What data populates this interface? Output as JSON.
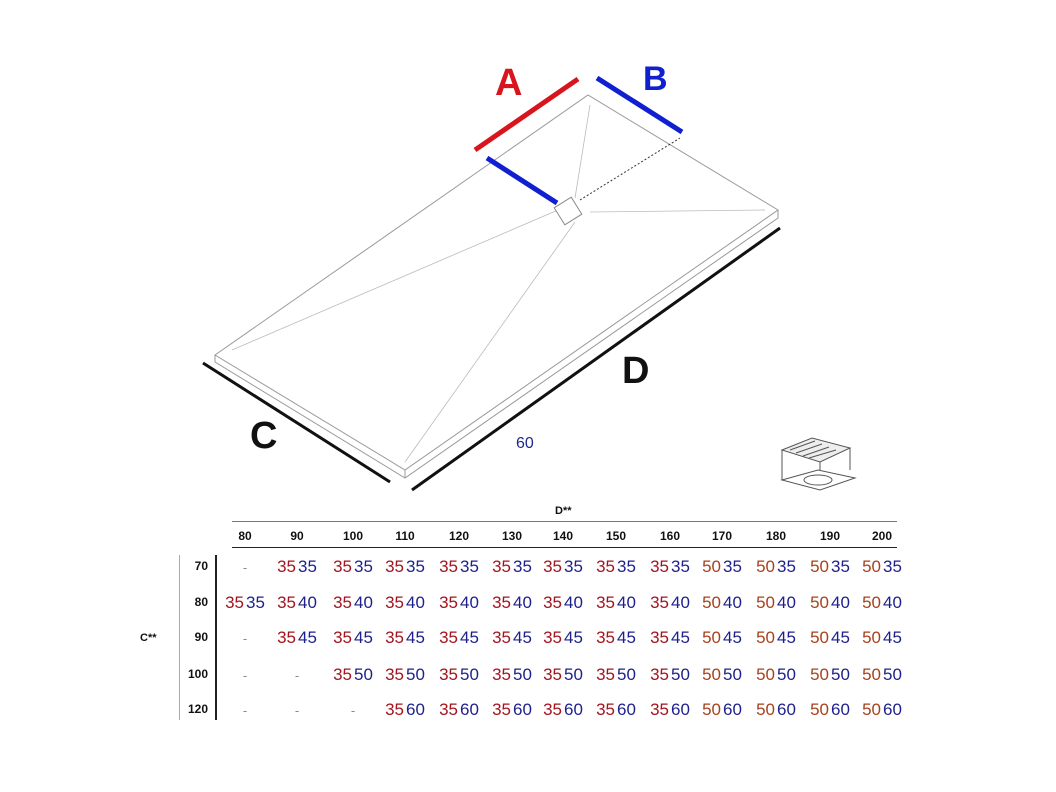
{
  "labels": {
    "A": "A",
    "B": "B",
    "C": "C",
    "D": "D",
    "note": "60"
  },
  "colors": {
    "A": "#d8141c",
    "B": "#1020d0",
    "dim": "#111111",
    "value_35": "#a3141f",
    "value_50": "#a8401c",
    "value_B": "#1d1f8c",
    "note": "#1d2a8c"
  },
  "icons": {
    "drain": "drain-grate-icon"
  },
  "table": {
    "col_axis_label": "D**",
    "row_axis_label": "C**",
    "columns": [
      "80",
      "90",
      "100",
      "110",
      "120",
      "130",
      "140",
      "150",
      "160",
      "170",
      "180",
      "190",
      "200"
    ],
    "rows": [
      {
        "label": "70",
        "cells": [
          [
            "-",
            ""
          ],
          [
            "35",
            "35"
          ],
          [
            "35",
            "35"
          ],
          [
            "35",
            "35"
          ],
          [
            "35",
            "35"
          ],
          [
            "35",
            "35"
          ],
          [
            "35",
            "35"
          ],
          [
            "35",
            "35"
          ],
          [
            "35",
            "35"
          ],
          [
            "50",
            "35"
          ],
          [
            "50",
            "35"
          ],
          [
            "50",
            "35"
          ],
          [
            "50",
            "35"
          ]
        ]
      },
      {
        "label": "80",
        "cells": [
          [
            "35",
            "35"
          ],
          [
            "35",
            "40"
          ],
          [
            "35",
            "40"
          ],
          [
            "35",
            "40"
          ],
          [
            "35",
            "40"
          ],
          [
            "35",
            "40"
          ],
          [
            "35",
            "40"
          ],
          [
            "35",
            "40"
          ],
          [
            "35",
            "40"
          ],
          [
            "50",
            "40"
          ],
          [
            "50",
            "40"
          ],
          [
            "50",
            "40"
          ],
          [
            "50",
            "40"
          ]
        ]
      },
      {
        "label": "90",
        "cells": [
          [
            "-",
            ""
          ],
          [
            "35",
            "45"
          ],
          [
            "35",
            "45"
          ],
          [
            "35",
            "45"
          ],
          [
            "35",
            "45"
          ],
          [
            "35",
            "45"
          ],
          [
            "35",
            "45"
          ],
          [
            "35",
            "45"
          ],
          [
            "35",
            "45"
          ],
          [
            "50",
            "45"
          ],
          [
            "50",
            "45"
          ],
          [
            "50",
            "45"
          ],
          [
            "50",
            "45"
          ]
        ]
      },
      {
        "label": "100",
        "cells": [
          [
            "-",
            ""
          ],
          [
            "-",
            ""
          ],
          [
            "35",
            "50"
          ],
          [
            "35",
            "50"
          ],
          [
            "35",
            "50"
          ],
          [
            "35",
            "50"
          ],
          [
            "35",
            "50"
          ],
          [
            "35",
            "50"
          ],
          [
            "35",
            "50"
          ],
          [
            "50",
            "50"
          ],
          [
            "50",
            "50"
          ],
          [
            "50",
            "50"
          ],
          [
            "50",
            "50"
          ]
        ]
      },
      {
        "label": "120",
        "cells": [
          [
            "-",
            ""
          ],
          [
            "-",
            ""
          ],
          [
            "-",
            ""
          ],
          [
            "35",
            "60"
          ],
          [
            "35",
            "60"
          ],
          [
            "35",
            "60"
          ],
          [
            "35",
            "60"
          ],
          [
            "35",
            "60"
          ],
          [
            "35",
            "60"
          ],
          [
            "50",
            "60"
          ],
          [
            "50",
            "60"
          ],
          [
            "50",
            "60"
          ],
          [
            "50",
            "60"
          ]
        ]
      }
    ]
  }
}
